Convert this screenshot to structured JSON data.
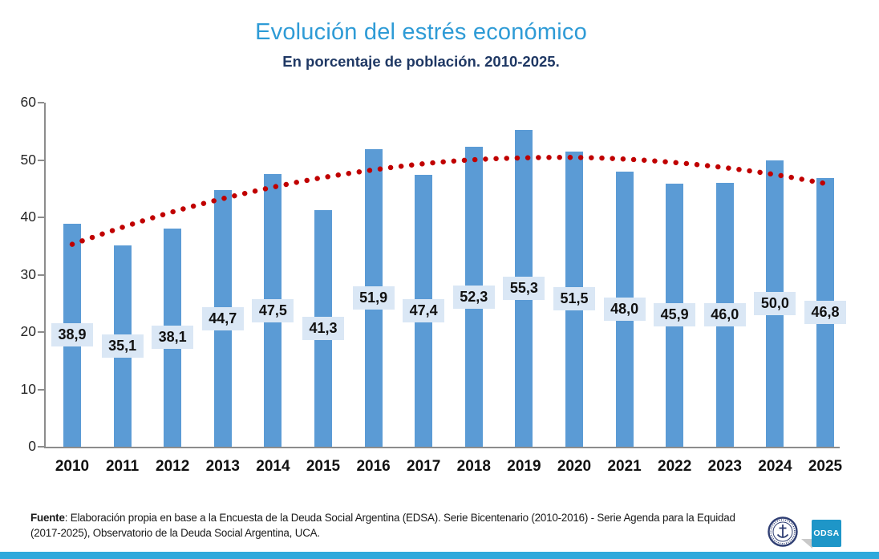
{
  "title": {
    "text": "Evolución del estrés económico",
    "subtitle": "En porcentaje de población. 2010-2025."
  },
  "chart_data": {
    "type": "bar",
    "title": "Evolución del estrés económico",
    "subtitle": "En porcentaje de población. 2010-2025.",
    "categories": [
      "2010",
      "2011",
      "2012",
      "2013",
      "2014",
      "2015",
      "2016",
      "2017",
      "2018",
      "2019",
      "2020",
      "2021",
      "2022",
      "2023",
      "2024",
      "2025"
    ],
    "values": [
      38.9,
      35.1,
      38.1,
      44.7,
      47.5,
      41.3,
      51.9,
      47.4,
      52.3,
      55.3,
      51.5,
      48.0,
      45.9,
      46.0,
      50.0,
      46.8
    ],
    "value_labels": [
      "38,9",
      "35,1",
      "38,1",
      "44,7",
      "47,5",
      "41,3",
      "51,9",
      "47,4",
      "52,3",
      "55,3",
      "51,5",
      "48,0",
      "45,9",
      "46,0",
      "50,0",
      "46,8"
    ],
    "ylim": [
      0,
      60
    ],
    "yticks": [
      0,
      10,
      20,
      30,
      40,
      50,
      60
    ],
    "grid": false,
    "legend": false,
    "xlabel": "",
    "ylabel": "",
    "trendline": {
      "type": "polynomial-dotted",
      "values": [
        35.3,
        38.3,
        41.0,
        43.3,
        45.3,
        47.0,
        48.3,
        49.4,
        50.1,
        50.4,
        50.5,
        50.2,
        49.6,
        48.7,
        47.5,
        45.9
      ]
    }
  },
  "footer": {
    "source_bold": "Fuente",
    "source_text": ": Elaboración propia en base a la Encuesta de la Deuda Social Argentina (EDSA). Serie Bicentenario (2010-2016) - Serie Agenda para la Equidad (2017-2025), Observatorio de la Deuda Social Argentina, UCA."
  },
  "logos": {
    "odsa_label": "ODSA",
    "seal_name": "UCA"
  },
  "colors": {
    "title_blue": "#2E9BD6",
    "subtitle_navy": "#1F3864",
    "bar_blue": "#5B9BD5",
    "value_label_bg": "#DAE7F5",
    "trend_dot_red": "#C00000",
    "axis_gray": "#8C8C8C",
    "bottom_strip_blue": "#2FA9DC",
    "odsa_badge_blue": "#1E96C8",
    "seal_navy": "#2F3E73"
  }
}
